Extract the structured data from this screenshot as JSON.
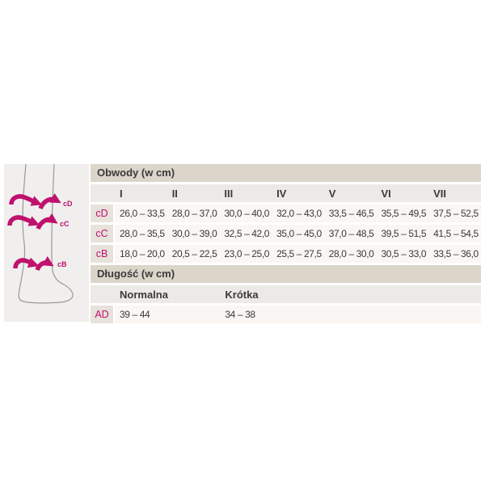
{
  "chart_data": [
    {
      "type": "table",
      "title": "Obwody (w cm)",
      "columns": [
        "I",
        "II",
        "III",
        "IV",
        "V",
        "VI",
        "VII"
      ],
      "rows": [
        {
          "label": "cD",
          "values": [
            "26,0 – 33,5",
            "28,0 – 37,0",
            "30,0 – 40,0",
            "32,0 – 43,0",
            "33,5 – 46,5",
            "35,5 – 49,5",
            "37,5 – 52,5"
          ]
        },
        {
          "label": "cC",
          "values": [
            "28,0 – 35,5",
            "30,0 – 39,0",
            "32,5 – 42,0",
            "35,0 – 45,0",
            "37,0 – 48,5",
            "39,5 – 51,5",
            "41,5 – 54,5"
          ]
        },
        {
          "label": "cB",
          "values": [
            "18,0 – 20,0",
            "20,5 – 22,5",
            "23,0 – 25,0",
            "25,5 – 27,5",
            "28,0 – 30,0",
            "30,5 – 33,0",
            "33,5 – 36,0"
          ]
        }
      ]
    },
    {
      "type": "table",
      "title": "Długość (w cm)",
      "columns": [
        "Normalna",
        "Krótka"
      ],
      "rows": [
        {
          "label": "AD",
          "values": [
            "39 – 44",
            "34 – 38"
          ]
        }
      ]
    }
  ],
  "diagram": {
    "arrow_labels": [
      "cD",
      "cC",
      "cB"
    ]
  },
  "colors": {
    "accent_magenta": "#c0116e",
    "section_header_bg": "#dbd5ca",
    "column_header_bg": "#eceae6",
    "row_bg": "#f9f6f3",
    "label_cell_bg": "#e7e2db",
    "leg_box_bg": "#f0efee",
    "text": "#3b3a39"
  }
}
